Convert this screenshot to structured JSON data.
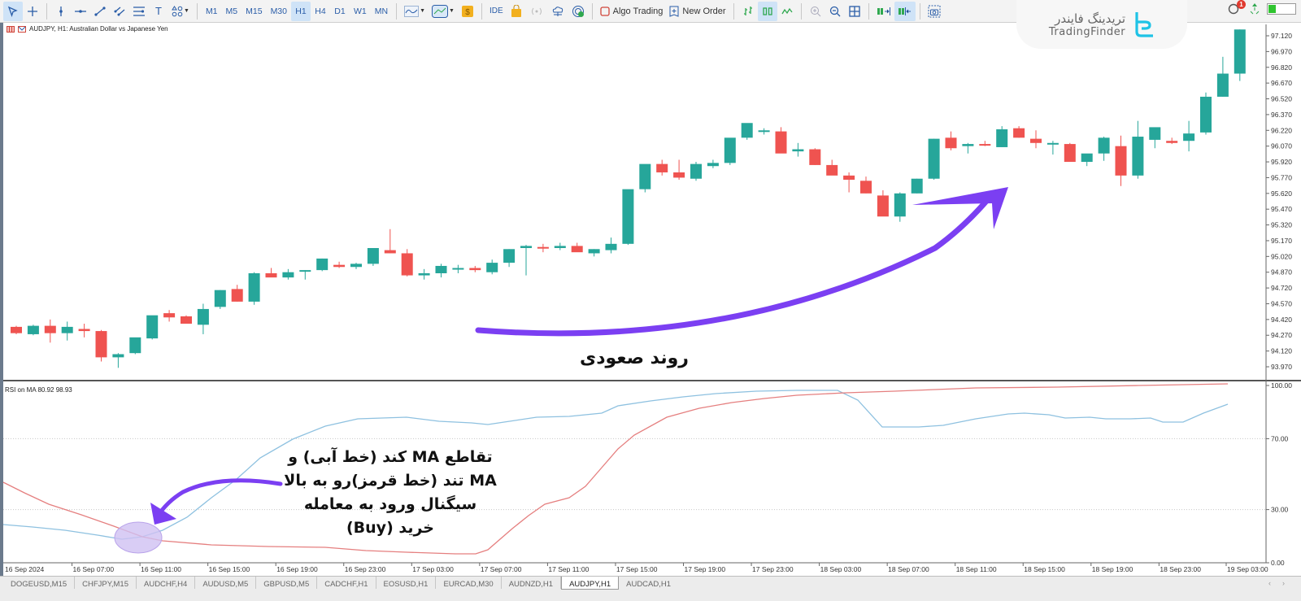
{
  "toolbar": {
    "tools": [
      {
        "name": "cursor",
        "icon": "cursor-arrow-icon",
        "active": true
      },
      {
        "name": "crosshair",
        "icon": "crosshair-icon"
      },
      {
        "name": "vertical-line",
        "icon": "vertical-line-icon"
      },
      {
        "name": "horizontal-line",
        "icon": "horizontal-line-icon"
      },
      {
        "name": "trend-line",
        "icon": "trend-line-icon"
      },
      {
        "name": "parallel-channel",
        "icon": "channel-icon"
      },
      {
        "name": "fibonacci",
        "icon": "fibonacci-icon"
      },
      {
        "name": "text",
        "icon": "text-tool-icon",
        "glyph": "T"
      },
      {
        "name": "shapes",
        "icon": "shapes-icon"
      }
    ],
    "timeframes": [
      "M1",
      "M5",
      "M15",
      "M30",
      "H1",
      "H4",
      "D1",
      "W1",
      "MN"
    ],
    "active_timeframe": "H1",
    "ide_label": "IDE",
    "algo_trading_label": "Algo Trading",
    "new_order_label": "New Order",
    "notifications_count": "1"
  },
  "brand": {
    "name_fa": "تریدینگ فایندر",
    "name_en": "TradingFinder"
  },
  "chart": {
    "title": "AUDJPY, H1:  Australian Dollar vs Japanese Yen",
    "symbol": "AUDJPY",
    "timeframe": "H1",
    "colors": {
      "bull": "#26a69a",
      "bear": "#ef5350",
      "background": "#ffffff",
      "axis": "#555555"
    }
  },
  "indicator": {
    "title": "RSI on MA 80.92 98.93",
    "colors": {
      "slow_ma": "#8ec1e0",
      "fast_ma": "#e57f7f"
    },
    "levels": [
      "100.00",
      "70.00",
      "30.00",
      "0.00"
    ]
  },
  "annotations": {
    "trend_label": "روند صعودی",
    "crossover_lines": [
      "تقاطع MA کند (خط آبی) و",
      "MA تند (خط قرمز)رو به بالا",
      "سیگنال ورود به معامله",
      "خرید (Buy)"
    ],
    "arrow_color": "#7b3ff2",
    "highlight_color": "#d9ccf5"
  },
  "chart_data": {
    "type": "candlestick",
    "title": "AUDJPY, H1: Australian Dollar vs Japanese Yen",
    "y_ticks": [
      "97.120",
      "96.970",
      "96.820",
      "96.670",
      "96.520",
      "96.370",
      "96.220",
      "96.070",
      "95.920",
      "95.770",
      "95.620",
      "95.470",
      "95.320",
      "95.170",
      "95.020",
      "94.870",
      "94.720",
      "94.570",
      "94.420",
      "94.270",
      "94.120",
      "93.970"
    ],
    "x_ticks": [
      "16 Sep 2024",
      "16 Sep 07:00",
      "16 Sep 11:00",
      "16 Sep 15:00",
      "16 Sep 19:00",
      "16 Sep 23:00",
      "17 Sep 03:00",
      "17 Sep 07:00",
      "17 Sep 11:00",
      "17 Sep 15:00",
      "17 Sep 19:00",
      "17 Sep 23:00",
      "18 Sep 03:00",
      "18 Sep 07:00",
      "18 Sep 11:00",
      "18 Sep 15:00",
      "18 Sep 19:00",
      "18 Sep 23:00",
      "19 Sep 03:00"
    ],
    "ylim": [
      93.92,
      97.2
    ],
    "candles_ohlc": [
      [
        94.35,
        94.36,
        94.28,
        94.29
      ],
      [
        94.28,
        94.37,
        94.27,
        94.36
      ],
      [
        94.36,
        94.42,
        94.2,
        94.29
      ],
      [
        94.29,
        94.4,
        94.22,
        94.35
      ],
      [
        94.33,
        94.38,
        94.25,
        94.31
      ],
      [
        94.31,
        94.32,
        94.02,
        94.06
      ],
      [
        94.06,
        94.1,
        93.96,
        94.09
      ],
      [
        94.1,
        94.23,
        94.09,
        94.25
      ],
      [
        94.24,
        94.43,
        94.23,
        94.46
      ],
      [
        94.48,
        94.51,
        94.4,
        94.44
      ],
      [
        94.45,
        94.46,
        94.39,
        94.38
      ],
      [
        94.37,
        94.57,
        94.28,
        94.52
      ],
      [
        94.54,
        94.7,
        94.52,
        94.7
      ],
      [
        94.71,
        94.75,
        94.59,
        94.59
      ],
      [
        94.59,
        94.87,
        94.56,
        94.86
      ],
      [
        94.86,
        94.91,
        94.83,
        94.82
      ],
      [
        94.82,
        94.9,
        94.8,
        94.87
      ],
      [
        94.88,
        94.89,
        94.8,
        94.89
      ],
      [
        94.89,
        95.0,
        94.88,
        95.0
      ],
      [
        94.94,
        94.97,
        94.91,
        94.92
      ],
      [
        94.92,
        94.96,
        94.9,
        94.95
      ],
      [
        94.95,
        95.07,
        94.93,
        95.1
      ],
      [
        95.08,
        95.28,
        95.05,
        95.05
      ],
      [
        95.05,
        95.09,
        94.83,
        94.84
      ],
      [
        94.84,
        94.9,
        94.8,
        94.86
      ],
      [
        94.86,
        94.95,
        94.82,
        94.93
      ],
      [
        94.9,
        94.94,
        94.86,
        94.91
      ],
      [
        94.91,
        94.93,
        94.87,
        94.89
      ],
      [
        94.87,
        94.99,
        94.85,
        94.96
      ],
      [
        94.96,
        95.09,
        94.92,
        95.09
      ],
      [
        95.1,
        95.13,
        94.84,
        95.12
      ],
      [
        95.11,
        95.14,
        95.06,
        95.1
      ],
      [
        95.1,
        95.15,
        95.08,
        95.12
      ],
      [
        95.12,
        95.15,
        95.07,
        95.06
      ],
      [
        95.05,
        95.09,
        95.02,
        95.09
      ],
      [
        95.08,
        95.2,
        95.05,
        95.14
      ],
      [
        95.14,
        95.65,
        95.13,
        95.66
      ],
      [
        95.66,
        95.87,
        95.63,
        95.9
      ],
      [
        95.9,
        95.94,
        95.79,
        95.82
      ],
      [
        95.82,
        95.94,
        95.75,
        95.77
      ],
      [
        95.76,
        95.92,
        95.74,
        95.9
      ],
      [
        95.88,
        95.94,
        95.86,
        95.91
      ],
      [
        95.91,
        96.14,
        95.89,
        96.15
      ],
      [
        96.15,
        96.26,
        96.13,
        96.29
      ],
      [
        96.21,
        96.24,
        96.18,
        96.22
      ],
      [
        96.21,
        96.25,
        96.01,
        96.0
      ],
      [
        96.02,
        96.1,
        95.97,
        96.04
      ],
      [
        96.04,
        96.05,
        95.89,
        95.89
      ],
      [
        95.89,
        95.94,
        95.82,
        95.79
      ],
      [
        95.79,
        95.82,
        95.63,
        95.75
      ],
      [
        95.74,
        95.78,
        95.62,
        95.62
      ],
      [
        95.6,
        95.65,
        95.43,
        95.4
      ],
      [
        95.4,
        95.63,
        95.35,
        95.62
      ],
      [
        95.62,
        95.76,
        95.62,
        95.76
      ],
      [
        95.76,
        96.14,
        95.75,
        96.14
      ],
      [
        96.15,
        96.21,
        96.03,
        96.05
      ],
      [
        96.07,
        96.1,
        96.0,
        96.09
      ],
      [
        96.09,
        96.12,
        96.07,
        96.08
      ],
      [
        96.06,
        96.26,
        96.06,
        96.23
      ],
      [
        96.24,
        96.26,
        96.15,
        96.15
      ],
      [
        96.14,
        96.22,
        96.05,
        96.1
      ],
      [
        96.09,
        96.12,
        95.99,
        96.1
      ],
      [
        96.09,
        96.1,
        95.93,
        95.92
      ],
      [
        95.92,
        95.99,
        95.88,
        96.0
      ],
      [
        96.0,
        96.16,
        95.93,
        96.15
      ],
      [
        96.07,
        96.17,
        95.69,
        95.79
      ],
      [
        95.79,
        96.31,
        95.76,
        96.16
      ],
      [
        96.13,
        96.22,
        96.05,
        96.25
      ],
      [
        96.12,
        96.15,
        96.09,
        96.1
      ],
      [
        96.12,
        96.31,
        96.02,
        96.19
      ],
      [
        96.2,
        96.58,
        96.18,
        96.54
      ],
      [
        96.54,
        96.92,
        96.54,
        96.76
      ],
      [
        96.76,
        97.18,
        96.69,
        97.18
      ]
    ],
    "rsi_series": [
      {
        "name": "slow MA (blue)",
        "color": "#8ec1e0",
        "start": 21,
        "end": 89
      },
      {
        "name": "fast MA (red)",
        "color": "#e57f7f",
        "start": 47,
        "end": 100
      }
    ]
  },
  "status_tabs": [
    {
      "label": "DOGEUSD,M15"
    },
    {
      "label": "CHFJPY,M15"
    },
    {
      "label": "AUDCHF,H4"
    },
    {
      "label": "AUDUSD,M5"
    },
    {
      "label": "GBPUSD,M5"
    },
    {
      "label": "CADCHF,H1"
    },
    {
      "label": "EOSUSD,H1"
    },
    {
      "label": "EURCAD,M30"
    },
    {
      "label": "AUDNZD,H1"
    },
    {
      "label": "AUDJPY,H1",
      "active": true
    },
    {
      "label": "AUDCAD,H1"
    }
  ],
  "tab_nav": {
    "prev": "‹",
    "next": "›"
  }
}
